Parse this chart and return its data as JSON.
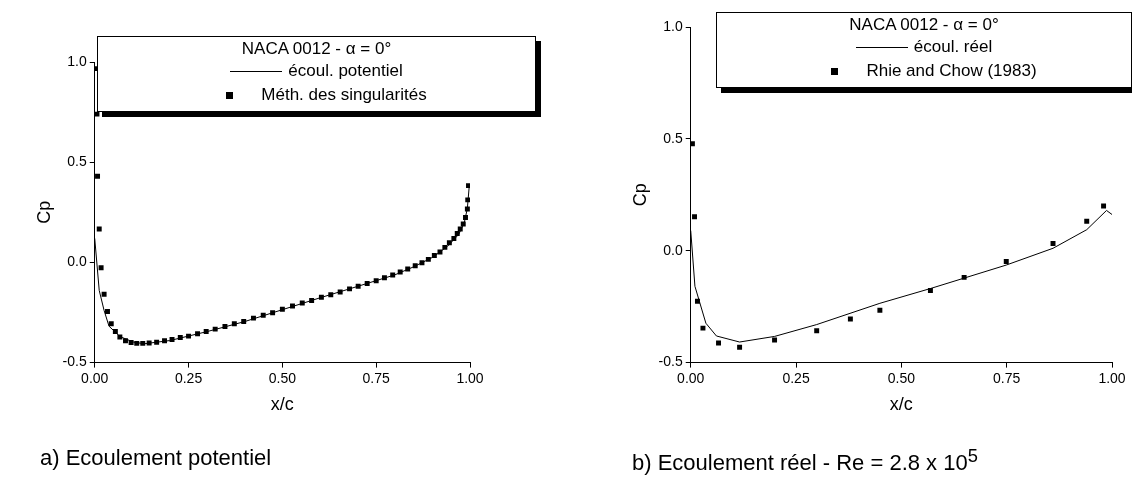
{
  "chart_data": [
    {
      "type": "line",
      "xlabel": "x/c",
      "ylabel": "Cp",
      "legend_title": "NACA 0012 - α = 0°",
      "legend": "top right",
      "grid": false,
      "xlim": [
        0,
        1
      ],
      "ylim": [
        -0.5,
        1.0
      ],
      "xticks": [
        {
          "value": 0,
          "label": "0.00"
        },
        {
          "value": 0.25,
          "label": "0.25"
        },
        {
          "value": 0.5,
          "label": "0.50"
        },
        {
          "value": 0.75,
          "label": "0.75"
        },
        {
          "value": 1,
          "label": "1.00"
        }
      ],
      "yticks": [
        {
          "value": -0.5,
          "label": "-0.5"
        },
        {
          "value": 0,
          "label": "0.0"
        },
        {
          "value": 0.5,
          "label": "0.5"
        },
        {
          "value": 1,
          "label": "1.0"
        }
      ],
      "annotations": [
        "a) Ecoulement potentiel"
      ],
      "series": [
        {
          "name": "écoul. potentiel",
          "type": "line",
          "marker": "none",
          "color": "#000000",
          "x": [
            0,
            0.012,
            0.025,
            0.038,
            0.067,
            0.104,
            0.132,
            0.2,
            0.3,
            0.4,
            0.5,
            0.6,
            0.7,
            0.8,
            0.85,
            0.9,
            0.94,
            0.97,
            0.985,
            0.993,
            0.998
          ],
          "values": [
            0.12,
            -0.14,
            -0.24,
            -0.318,
            -0.37,
            -0.398,
            -0.406,
            -0.39,
            -0.345,
            -0.295,
            -0.236,
            -0.177,
            -0.12,
            -0.062,
            -0.022,
            0.025,
            0.08,
            0.14,
            0.2,
            0.27,
            0.38
          ]
        },
        {
          "name": "Méth. des singularités",
          "type": "scatter",
          "marker": "square",
          "color": "#000000",
          "x": [
            0.004,
            0.006,
            0.0075,
            0.012,
            0.017,
            0.025,
            0.034,
            0.044,
            0.055,
            0.067,
            0.082,
            0.097,
            0.112,
            0.128,
            0.145,
            0.165,
            0.186,
            0.206,
            0.228,
            0.25,
            0.274,
            0.297,
            0.321,
            0.347,
            0.372,
            0.397,
            0.423,
            0.449,
            0.474,
            0.5,
            0.527,
            0.553,
            0.578,
            0.604,
            0.629,
            0.654,
            0.679,
            0.702,
            0.726,
            0.75,
            0.772,
            0.794,
            0.814,
            0.834,
            0.854,
            0.872,
            0.889,
            0.905,
            0.92,
            0.933,
            0.945,
            0.957,
            0.966,
            0.974,
            0.982,
            0.988,
            0.993,
            0.994,
            0.996
          ],
          "values": [
            0.967,
            0.74,
            0.43,
            0.167,
            -0.027,
            -0.159,
            -0.245,
            -0.306,
            -0.345,
            -0.372,
            -0.391,
            -0.4,
            -0.404,
            -0.404,
            -0.402,
            -0.398,
            -0.391,
            -0.385,
            -0.375,
            -0.368,
            -0.356,
            -0.345,
            -0.333,
            -0.32,
            -0.306,
            -0.295,
            -0.278,
            -0.264,
            -0.251,
            -0.234,
            -0.218,
            -0.203,
            -0.19,
            -0.174,
            -0.161,
            -0.148,
            -0.132,
            -0.119,
            -0.105,
            -0.092,
            -0.077,
            -0.063,
            -0.048,
            -0.033,
            -0.017,
            -0.002,
            0.015,
            0.034,
            0.052,
            0.075,
            0.098,
            0.119,
            0.144,
            0.167,
            0.192,
            0.224,
            0.266,
            0.312,
            0.383
          ]
        }
      ]
    },
    {
      "type": "line",
      "xlabel": "x/c",
      "ylabel": "Cp",
      "legend_title": "NACA 0012 - α = 0°",
      "legend": "top right",
      "grid": false,
      "xlim": [
        0,
        1
      ],
      "ylim": [
        -0.5,
        1.0
      ],
      "xticks": [
        {
          "value": 0,
          "label": "0.00"
        },
        {
          "value": 0.25,
          "label": "0.25"
        },
        {
          "value": 0.5,
          "label": "0.50"
        },
        {
          "value": 0.75,
          "label": "0.75"
        },
        {
          "value": 1,
          "label": "1.00"
        }
      ],
      "yticks": [
        {
          "value": -0.5,
          "label": "-0.5"
        },
        {
          "value": 0,
          "label": "0.0"
        },
        {
          "value": 0.5,
          "label": "0.5"
        },
        {
          "value": 1,
          "label": "1.0"
        }
      ],
      "annotations": [
        "b) Ecoulement réel - Re = 2.8 x 10$^{5}$"
      ],
      "series": [
        {
          "name": "écoul. réel",
          "type": "line",
          "marker": "none",
          "color": "#000000",
          "x": [
            0,
            0.01,
            0.036,
            0.061,
            0.116,
            0.199,
            0.299,
            0.449,
            0.569,
            0.749,
            0.86,
            0.94,
            0.987,
            1.0
          ],
          "values": [
            0.09,
            -0.159,
            -0.324,
            -0.381,
            -0.408,
            -0.383,
            -0.33,
            -0.235,
            -0.169,
            -0.064,
            0.011,
            0.094,
            0.18,
            0.162
          ]
        },
        {
          "name": "Rhie and Chow (1983)",
          "type": "scatter",
          "marker": "square",
          "color": "#000000",
          "x": [
            0.004,
            0.009,
            0.016,
            0.029,
            0.066,
            0.116,
            0.199,
            0.299,
            0.379,
            0.449,
            0.569,
            0.649,
            0.749,
            0.86,
            0.94,
            0.98
          ],
          "values": [
            0.478,
            0.152,
            -0.226,
            -0.346,
            -0.412,
            -0.431,
            -0.399,
            -0.358,
            -0.305,
            -0.266,
            -0.178,
            -0.119,
            -0.048,
            0.032,
            0.132,
            0.2
          ]
        }
      ]
    }
  ]
}
